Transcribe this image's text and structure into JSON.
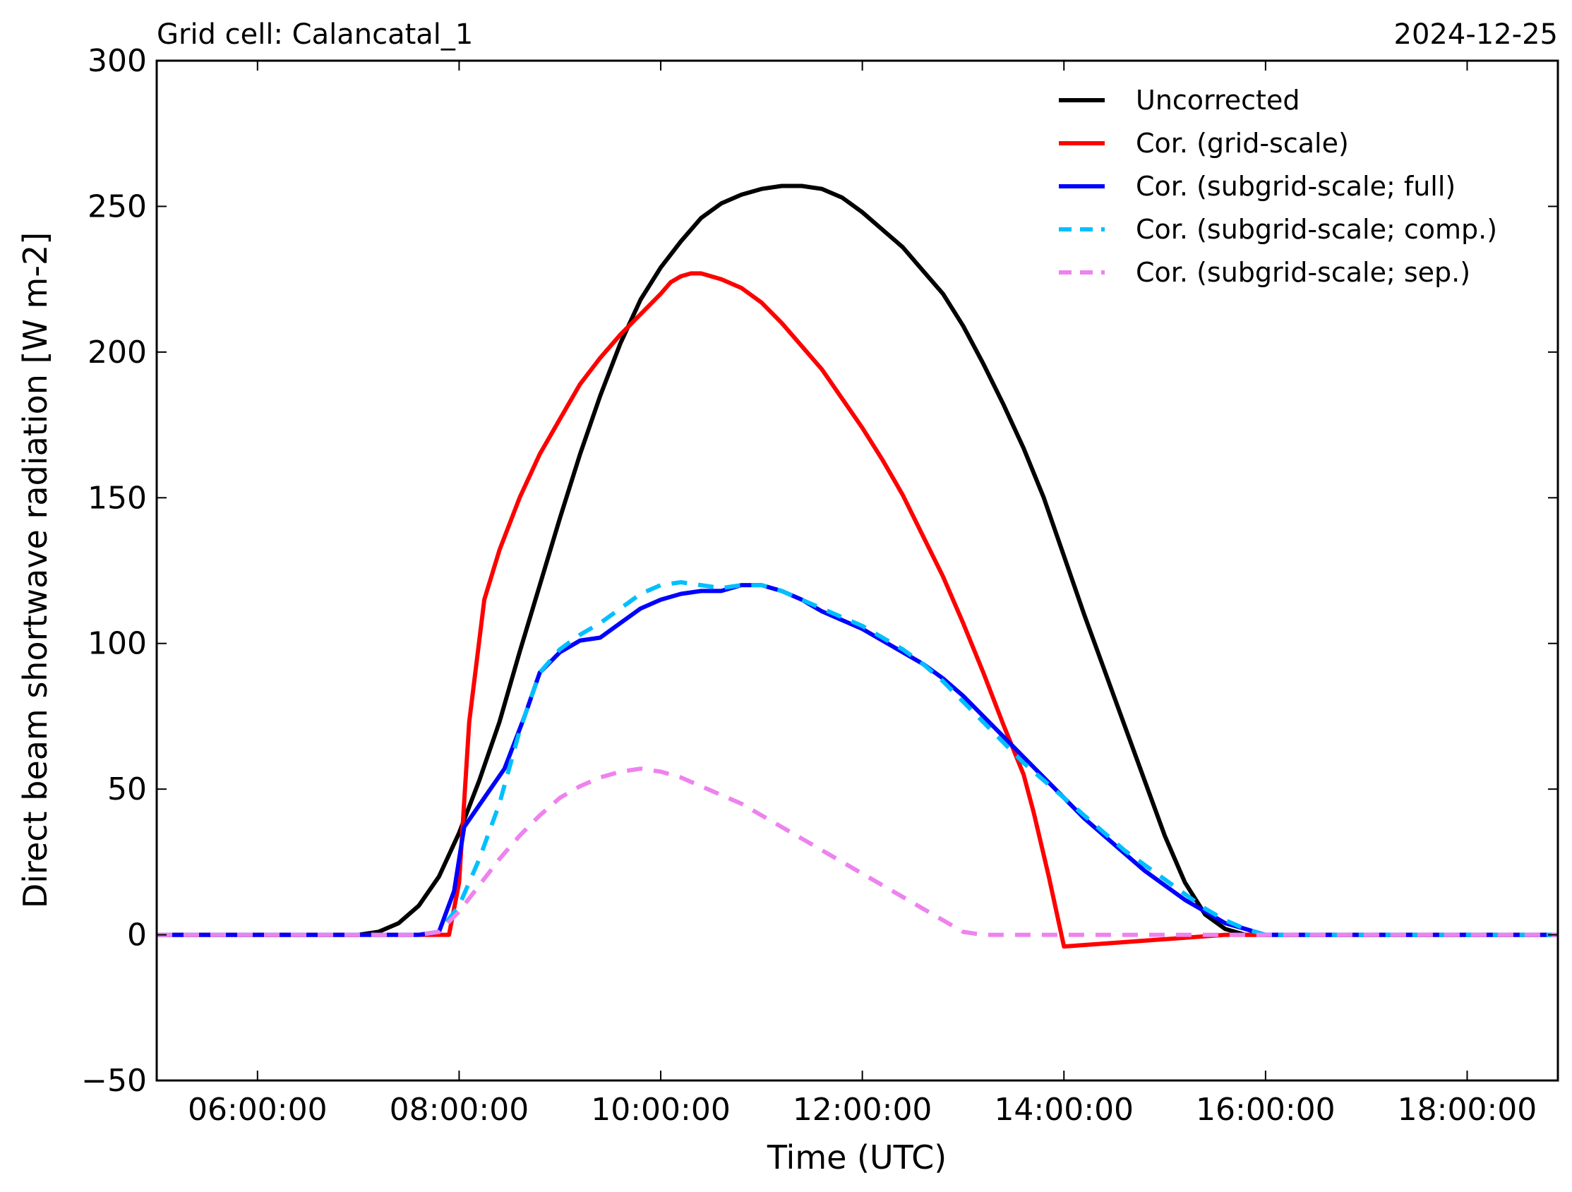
{
  "chart_data": {
    "type": "line",
    "title_left": "Grid cell: Calancatal_1",
    "title_right": "2024-12-25",
    "xlabel": "Time (UTC)",
    "ylabel": "Direct beam shortwave radiation [W m-2]",
    "xlim": [
      5.0,
      18.9
    ],
    "ylim": [
      -50,
      300
    ],
    "grid": false,
    "legend_position": "top-right",
    "x_ticks": [
      {
        "value": 6,
        "label": "06:00:00"
      },
      {
        "value": 8,
        "label": "08:00:00"
      },
      {
        "value": 10,
        "label": "10:00:00"
      },
      {
        "value": 12,
        "label": "12:00:00"
      },
      {
        "value": 14,
        "label": "14:00:00"
      },
      {
        "value": 16,
        "label": "16:00:00"
      },
      {
        "value": 18,
        "label": "18:00:00"
      }
    ],
    "y_ticks": [
      {
        "value": 300,
        "label": "300"
      },
      {
        "value": 250,
        "label": "250"
      },
      {
        "value": 200,
        "label": "200"
      },
      {
        "value": 150,
        "label": "150"
      },
      {
        "value": 100,
        "label": "100"
      },
      {
        "value": 50,
        "label": "50"
      },
      {
        "value": 0,
        "label": "0"
      },
      {
        "value": -50,
        "label": "−50"
      }
    ],
    "series": [
      {
        "name": "Uncorrected",
        "color": "#000000",
        "dash": "solid",
        "points": [
          [
            5.0,
            0
          ],
          [
            7.0,
            0
          ],
          [
            7.2,
            1
          ],
          [
            7.4,
            4
          ],
          [
            7.6,
            10
          ],
          [
            7.8,
            20
          ],
          [
            8.0,
            35
          ],
          [
            8.2,
            53
          ],
          [
            8.4,
            73
          ],
          [
            8.6,
            97
          ],
          [
            8.8,
            120
          ],
          [
            9.0,
            143
          ],
          [
            9.2,
            165
          ],
          [
            9.4,
            185
          ],
          [
            9.6,
            203
          ],
          [
            9.8,
            218
          ],
          [
            10.0,
            229
          ],
          [
            10.2,
            238
          ],
          [
            10.4,
            246
          ],
          [
            10.6,
            251
          ],
          [
            10.8,
            254
          ],
          [
            11.0,
            256
          ],
          [
            11.2,
            257
          ],
          [
            11.4,
            257
          ],
          [
            11.6,
            256
          ],
          [
            11.8,
            253
          ],
          [
            12.0,
            248
          ],
          [
            12.2,
            242
          ],
          [
            12.4,
            236
          ],
          [
            12.6,
            228
          ],
          [
            12.8,
            220
          ],
          [
            13.0,
            209
          ],
          [
            13.2,
            196
          ],
          [
            13.4,
            182
          ],
          [
            13.6,
            167
          ],
          [
            13.8,
            150
          ],
          [
            14.0,
            130
          ],
          [
            14.2,
            110
          ],
          [
            14.4,
            91
          ],
          [
            14.6,
            72
          ],
          [
            14.8,
            53
          ],
          [
            15.0,
            34
          ],
          [
            15.2,
            18
          ],
          [
            15.4,
            7
          ],
          [
            15.6,
            2
          ],
          [
            15.8,
            0
          ],
          [
            18.9,
            0
          ]
        ]
      },
      {
        "name": "Cor. (grid-scale)",
        "color": "#ff0000",
        "dash": "solid",
        "points": [
          [
            5.0,
            0
          ],
          [
            7.9,
            0
          ],
          [
            8.0,
            18
          ],
          [
            8.1,
            73
          ],
          [
            8.25,
            115
          ],
          [
            8.4,
            132
          ],
          [
            8.6,
            150
          ],
          [
            8.8,
            165
          ],
          [
            9.0,
            177
          ],
          [
            9.2,
            189
          ],
          [
            9.4,
            198
          ],
          [
            9.6,
            206
          ],
          [
            9.8,
            213
          ],
          [
            10.0,
            220
          ],
          [
            10.1,
            224
          ],
          [
            10.2,
            226
          ],
          [
            10.3,
            227
          ],
          [
            10.4,
            227
          ],
          [
            10.6,
            225
          ],
          [
            10.8,
            222
          ],
          [
            11.0,
            217
          ],
          [
            11.2,
            210
          ],
          [
            11.4,
            202
          ],
          [
            11.6,
            194
          ],
          [
            11.8,
            184
          ],
          [
            12.0,
            174
          ],
          [
            12.2,
            163
          ],
          [
            12.4,
            151
          ],
          [
            12.6,
            137
          ],
          [
            12.8,
            123
          ],
          [
            13.0,
            107
          ],
          [
            13.2,
            90
          ],
          [
            13.4,
            72
          ],
          [
            13.6,
            55
          ],
          [
            13.7,
            42
          ],
          [
            13.85,
            20
          ],
          [
            14.0,
            -4
          ],
          [
            14.4,
            -3
          ],
          [
            15.0,
            -1.5
          ],
          [
            15.6,
            0
          ],
          [
            18.9,
            0
          ]
        ]
      },
      {
        "name": "Cor. (subgrid-scale; full)",
        "color": "#0000ff",
        "dash": "solid",
        "points": [
          [
            5.0,
            0
          ],
          [
            7.6,
            0
          ],
          [
            7.8,
            1
          ],
          [
            7.95,
            15
          ],
          [
            8.05,
            37
          ],
          [
            8.25,
            47
          ],
          [
            8.45,
            57
          ],
          [
            8.65,
            75
          ],
          [
            8.8,
            90
          ],
          [
            9.0,
            97
          ],
          [
            9.2,
            101
          ],
          [
            9.4,
            102
          ],
          [
            9.6,
            107
          ],
          [
            9.8,
            112
          ],
          [
            10.0,
            115
          ],
          [
            10.2,
            117
          ],
          [
            10.4,
            118
          ],
          [
            10.6,
            118
          ],
          [
            10.8,
            120
          ],
          [
            11.0,
            120
          ],
          [
            11.2,
            118
          ],
          [
            11.4,
            115
          ],
          [
            11.6,
            111
          ],
          [
            11.8,
            108
          ],
          [
            12.0,
            105
          ],
          [
            12.2,
            101
          ],
          [
            12.4,
            97
          ],
          [
            12.6,
            93
          ],
          [
            12.8,
            88
          ],
          [
            13.0,
            82
          ],
          [
            13.2,
            75
          ],
          [
            13.4,
            68
          ],
          [
            13.6,
            61
          ],
          [
            13.8,
            54
          ],
          [
            14.0,
            47
          ],
          [
            14.2,
            40
          ],
          [
            14.4,
            34
          ],
          [
            14.6,
            28
          ],
          [
            14.8,
            22
          ],
          [
            15.0,
            17
          ],
          [
            15.2,
            12
          ],
          [
            15.4,
            8
          ],
          [
            15.6,
            4
          ],
          [
            15.8,
            2
          ],
          [
            16.0,
            0
          ],
          [
            18.9,
            0
          ]
        ]
      },
      {
        "name": "Cor. (subgrid-scale; comp.)",
        "color": "#00bfff",
        "dash": "dashed",
        "points": [
          [
            5.0,
            0
          ],
          [
            7.6,
            0
          ],
          [
            7.8,
            1
          ],
          [
            8.0,
            10
          ],
          [
            8.2,
            26
          ],
          [
            8.4,
            45
          ],
          [
            8.6,
            70
          ],
          [
            8.8,
            90
          ],
          [
            9.0,
            98
          ],
          [
            9.2,
            103
          ],
          [
            9.4,
            107
          ],
          [
            9.6,
            112
          ],
          [
            9.8,
            117
          ],
          [
            10.0,
            120
          ],
          [
            10.2,
            121
          ],
          [
            10.4,
            120
          ],
          [
            10.6,
            119
          ],
          [
            10.8,
            120
          ],
          [
            11.0,
            120
          ],
          [
            11.2,
            118
          ],
          [
            11.4,
            115
          ],
          [
            11.6,
            112
          ],
          [
            11.8,
            109
          ],
          [
            12.0,
            106
          ],
          [
            12.2,
            102
          ],
          [
            12.4,
            98
          ],
          [
            12.6,
            93
          ],
          [
            12.8,
            87
          ],
          [
            13.0,
            80
          ],
          [
            13.2,
            73
          ],
          [
            13.4,
            66
          ],
          [
            13.6,
            59
          ],
          [
            13.8,
            53
          ],
          [
            14.0,
            47
          ],
          [
            14.2,
            41
          ],
          [
            14.4,
            35
          ],
          [
            14.6,
            29
          ],
          [
            14.8,
            24
          ],
          [
            15.0,
            19
          ],
          [
            15.2,
            14
          ],
          [
            15.4,
            9
          ],
          [
            15.6,
            5
          ],
          [
            15.8,
            2
          ],
          [
            16.0,
            0
          ],
          [
            18.9,
            0
          ]
        ]
      },
      {
        "name": "Cor. (subgrid-scale; sep.)",
        "color": "#ee82ee",
        "dash": "dashed",
        "points": [
          [
            5.0,
            0
          ],
          [
            7.6,
            0
          ],
          [
            7.8,
            1
          ],
          [
            8.0,
            8
          ],
          [
            8.2,
            17
          ],
          [
            8.4,
            26
          ],
          [
            8.6,
            34
          ],
          [
            8.8,
            41
          ],
          [
            9.0,
            47
          ],
          [
            9.2,
            51
          ],
          [
            9.4,
            54
          ],
          [
            9.6,
            56
          ],
          [
            9.8,
            57
          ],
          [
            10.0,
            56
          ],
          [
            10.2,
            54
          ],
          [
            10.4,
            51
          ],
          [
            10.6,
            48
          ],
          [
            10.8,
            45
          ],
          [
            11.0,
            41
          ],
          [
            11.2,
            37
          ],
          [
            11.4,
            33
          ],
          [
            11.6,
            29
          ],
          [
            11.8,
            25
          ],
          [
            12.0,
            21
          ],
          [
            12.2,
            17
          ],
          [
            12.4,
            13
          ],
          [
            12.6,
            9
          ],
          [
            12.8,
            5
          ],
          [
            13.0,
            1
          ],
          [
            13.2,
            0
          ],
          [
            18.9,
            0
          ]
        ]
      }
    ]
  }
}
